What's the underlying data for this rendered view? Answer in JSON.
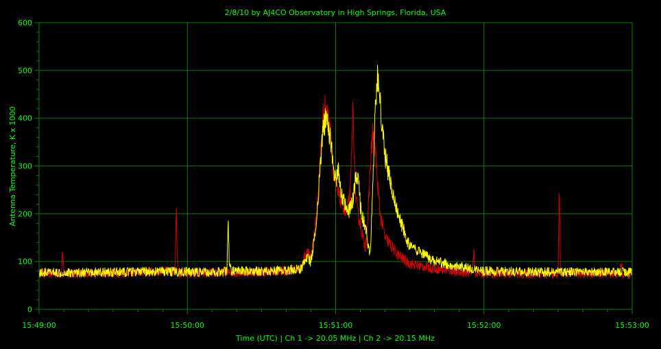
{
  "chart_data": {
    "type": "line",
    "title": "2/8/10  by  AJ4CO Observatory  in  High Springs, Florida, USA",
    "xlabel": "Time (UTC)  |  Ch 1 -> 20.05 MHz  |  Ch 2 -> 20.15 MHz",
    "ylabel": "Antenna Temperature, K x 1000",
    "xlim": [
      "15:49:00",
      "15:53:00"
    ],
    "ylim": [
      0,
      600
    ],
    "x_ticks": [
      "15:49:00",
      "15:50:00",
      "15:51:00",
      "15:52:00",
      "15:53:00"
    ],
    "y_ticks": [
      "0",
      "100",
      "200",
      "300",
      "400",
      "500",
      "600"
    ],
    "grid": true,
    "colors": {
      "background": "#000000",
      "grid": "#008000",
      "text": "#00ff00",
      "ch1": "#cc0000",
      "ch2": "#ffff00"
    },
    "series": [
      {
        "key": "ch1",
        "x_sec": [
          0,
          9,
          9.5,
          10,
          30,
          55,
          55.5,
          56,
          56.5,
          80,
          90,
          100,
          106,
          108,
          110,
          112,
          113,
          114,
          115,
          116,
          117,
          118,
          119,
          120,
          121,
          122,
          123,
          124,
          125,
          126,
          127,
          128,
          129,
          130,
          131,
          132,
          133,
          134,
          135,
          136,
          137,
          138,
          140,
          145,
          150,
          160,
          170,
          175,
          176,
          176.5,
          180,
          200,
          210,
          210.5,
          211,
          230,
          235,
          235.5,
          236,
          240
        ],
        "y": [
          75,
          75,
          125,
          75,
          76,
          80,
          215,
          100,
          75,
          77,
          78,
          80,
          85,
          120,
          110,
          180,
          250,
          330,
          410,
          425,
          400,
          360,
          300,
          260,
          240,
          230,
          220,
          200,
          215,
          250,
          425,
          240,
          200,
          180,
          150,
          130,
          180,
          300,
          370,
          340,
          260,
          200,
          150,
          115,
          95,
          85,
          78,
          76,
          118,
          76,
          75,
          74,
          74,
          260,
          75,
          75,
          75,
          100,
          74,
          74
        ]
      },
      {
        "key": "ch2",
        "x_sec": [
          0,
          20,
          50,
          70,
          76,
          76.5,
          77,
          78,
          90,
          100,
          106,
          108,
          110,
          112,
          113,
          114,
          115,
          116,
          117,
          118,
          119,
          120,
          121,
          122,
          123,
          124,
          125,
          126,
          127,
          128,
          129,
          130,
          131,
          132,
          133,
          134,
          135,
          136,
          137,
          138,
          140,
          145,
          150,
          160,
          170,
          180,
          200,
          220,
          240
        ],
        "y": [
          77,
          77,
          79,
          77,
          80,
          185,
          90,
          80,
          80,
          82,
          85,
          110,
          100,
          170,
          240,
          320,
          380,
          400,
          385,
          350,
          300,
          270,
          290,
          255,
          230,
          215,
          200,
          210,
          230,
          265,
          280,
          220,
          190,
          175,
          140,
          115,
          250,
          420,
          500,
          430,
          320,
          200,
          130,
          100,
          90,
          80,
          78,
          78,
          78
        ]
      }
    ]
  }
}
